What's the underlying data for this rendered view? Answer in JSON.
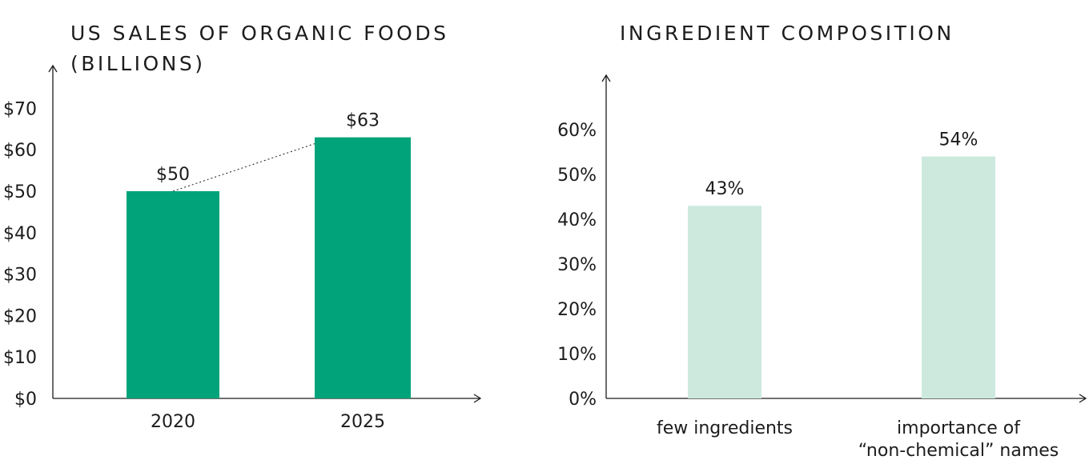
{
  "chart_data": [
    {
      "type": "bar",
      "title": "US SALES OF ORGANIC FOODS",
      "subtitle": "(BILLIONS)",
      "categories": [
        "2020",
        "2025"
      ],
      "values": [
        50,
        63
      ],
      "value_labels": [
        "$50",
        "$63"
      ],
      "ylim": [
        0,
        70
      ],
      "yticks": [
        "$0",
        "$10",
        "$20",
        "$30",
        "$40",
        "$50",
        "$60",
        "$70"
      ],
      "ytick_values": [
        0,
        10,
        20,
        30,
        40,
        50,
        60,
        70
      ],
      "bar_color": "#00a37a",
      "connector": "dotted",
      "grid": false
    },
    {
      "type": "bar",
      "title": "INGREDIENT COMPOSITION",
      "categories": [
        [
          "few ingredients"
        ],
        [
          "importance of",
          "“non-chemical” names"
        ]
      ],
      "values": [
        43,
        54
      ],
      "value_labels": [
        "43%",
        "54%"
      ],
      "ylim": [
        0,
        66
      ],
      "yticks": [
        "0%",
        "10%",
        "20%",
        "30%",
        "40%",
        "50%",
        "60%"
      ],
      "ytick_values": [
        0,
        10,
        20,
        30,
        40,
        50,
        60
      ],
      "bar_color": "#cde9dd",
      "grid": false
    }
  ]
}
